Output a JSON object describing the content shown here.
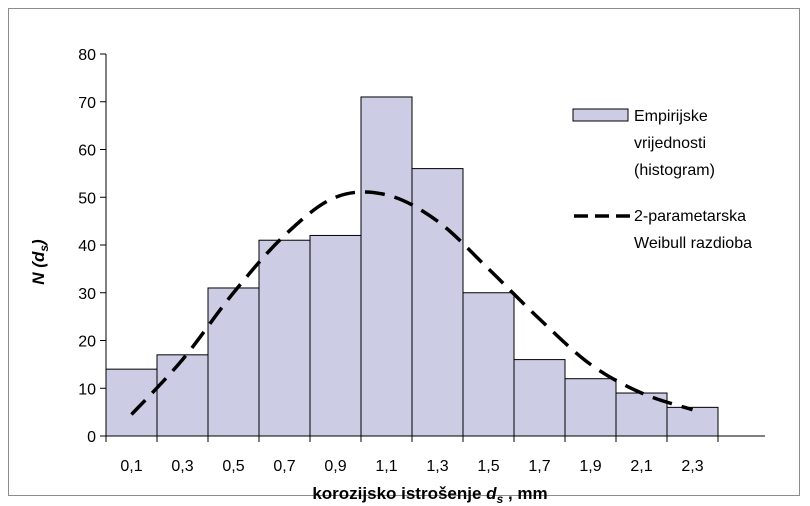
{
  "chart_data": {
    "type": "bar",
    "categories": [
      "0,1",
      "0,3",
      "0,5",
      "0,7",
      "0,9",
      "1,1",
      "1,3",
      "1,5",
      "1,7",
      "1,9",
      "2,1",
      "2,3"
    ],
    "series": [
      {
        "name": "Empirijske vrijednosti (histogram)",
        "name_lines": [
          "Empirijske",
          "vrijednosti",
          "(histogram)"
        ],
        "type": "bar",
        "values": [
          14,
          17,
          31,
          41,
          42,
          71,
          56,
          30,
          16,
          12,
          9,
          6
        ],
        "color": "#ccccE5"
      },
      {
        "name": "2-parametarska Weibull razdioba",
        "name_lines": [
          "2-parametarska",
          "Weibull razdioba"
        ],
        "type": "line",
        "style": "dashed",
        "x": [
          0.1,
          0.3,
          0.5,
          0.7,
          0.9,
          1.1,
          1.3,
          1.5,
          1.7,
          1.9,
          2.1,
          2.3
        ],
        "values": [
          4.5,
          16,
          30,
          42,
          50,
          50.5,
          45,
          35,
          24.5,
          15,
          9,
          5.5
        ],
        "color": "#000000"
      }
    ],
    "ylabel": "N (ds)",
    "ylabel_main": "N (d",
    "ylabel_sub": "s",
    "ylabel_end": ")",
    "xlabel": "korozijsko istrošenje ds , mm",
    "xlabel_main": "korozijsko istrošenje ",
    "xlabel_var": "d",
    "xlabel_sub": "s",
    "xlabel_end": " , mm",
    "ylim": [
      0,
      80
    ],
    "yticks": [
      0,
      10,
      20,
      30,
      40,
      50,
      60,
      70,
      80
    ],
    "grid": false,
    "legend": "right"
  }
}
